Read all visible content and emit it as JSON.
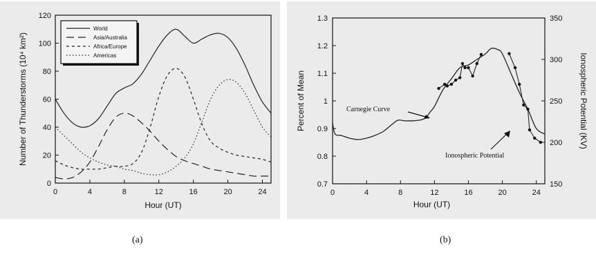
{
  "captions": {
    "a": "(a)",
    "b": "(b)"
  },
  "chart_data": [
    {
      "type": "line",
      "xlabel": "Hour  (UT)",
      "ylabel": "Number of Thunderstorms (10⁴ km²)",
      "xlim": [
        0,
        25
      ],
      "ylim": [
        0,
        120
      ],
      "xticks": [
        0,
        4,
        8,
        12,
        16,
        20,
        24
      ],
      "yticks": [
        0,
        20,
        40,
        60,
        80,
        100,
        120
      ],
      "grid": false,
      "legend_position": "top-left",
      "series": [
        {
          "name": "World",
          "dash": "solid",
          "x": [
            0,
            1,
            2,
            3,
            4,
            5,
            6,
            7,
            8,
            9,
            10,
            11,
            12,
            13,
            14,
            15,
            16,
            17,
            18,
            19,
            20,
            21,
            22,
            23,
            24,
            25
          ],
          "y": [
            60,
            50,
            43,
            40,
            41,
            46,
            55,
            64,
            68,
            71,
            78,
            88,
            98,
            106,
            110,
            105,
            100,
            103,
            106,
            107,
            104,
            96,
            84,
            70,
            58,
            50
          ]
        },
        {
          "name": "Asia/Australia",
          "dash": "long-dash",
          "x": [
            0,
            1,
            2,
            3,
            4,
            5,
            6,
            7,
            8,
            9,
            10,
            11,
            12,
            13,
            14,
            15,
            16,
            17,
            18,
            19,
            20,
            21,
            22,
            23,
            24,
            25
          ],
          "y": [
            4,
            3,
            4,
            8,
            15,
            26,
            38,
            47,
            50,
            48,
            43,
            37,
            30,
            24,
            19,
            16,
            14,
            12,
            10,
            9,
            8,
            7,
            6,
            5,
            5,
            5
          ]
        },
        {
          "name": "Africa/Europe",
          "dash": "short-dash",
          "x": [
            0,
            1,
            2,
            3,
            4,
            5,
            6,
            7,
            8,
            9,
            10,
            11,
            12,
            13,
            14,
            15,
            16,
            17,
            18,
            19,
            20,
            21,
            22,
            23,
            24,
            25
          ],
          "y": [
            16,
            13,
            11,
            10,
            10,
            10,
            11,
            12,
            12,
            14,
            22,
            40,
            62,
            77,
            82,
            76,
            60,
            42,
            30,
            25,
            22,
            20,
            19,
            18,
            17,
            15
          ]
        },
        {
          "name": "Americas",
          "dash": "dotted",
          "x": [
            0,
            1,
            2,
            3,
            4,
            5,
            6,
            7,
            8,
            9,
            10,
            11,
            12,
            13,
            14,
            15,
            16,
            17,
            18,
            19,
            20,
            21,
            22,
            23,
            24,
            25
          ],
          "y": [
            40,
            34,
            28,
            22,
            18,
            15,
            13,
            12,
            10,
            9,
            7,
            6,
            6,
            8,
            12,
            18,
            28,
            44,
            60,
            70,
            74,
            72,
            64,
            52,
            40,
            33
          ]
        }
      ]
    },
    {
      "type": "line",
      "xlabel": "Hour  (UT)",
      "ylabel": "Percent of Mean",
      "ylabel_right": "Ionospheric  Potential  (KV)",
      "xlim": [
        0,
        25
      ],
      "ylim": [
        0.7,
        1.3
      ],
      "ylim_right": [
        150,
        350
      ],
      "xticks": [
        0,
        4,
        8,
        12,
        16,
        20,
        24
      ],
      "yticks": [
        0.7,
        0.8,
        0.9,
        1,
        1.1,
        1.2,
        1.3
      ],
      "yticks_right": [
        150,
        200,
        250,
        300,
        350
      ],
      "grid": false,
      "annotations": [
        "Carnegie   Curve",
        "Ionospheric   Potential"
      ],
      "series": [
        {
          "label": "Carnegie   Curve",
          "dash": "solid",
          "axis": "left",
          "x": [
            0,
            0.3,
            1,
            2,
            3,
            4,
            5,
            6,
            7,
            7.7,
            8.5,
            9.5,
            10.5,
            11,
            11.5,
            12,
            13,
            14,
            15,
            16,
            17,
            18,
            18.7,
            19.5,
            20,
            21,
            22,
            23,
            24,
            25
          ],
          "y": [
            0.92,
            0.88,
            0.875,
            0.865,
            0.86,
            0.865,
            0.875,
            0.89,
            0.915,
            0.93,
            0.928,
            0.928,
            0.932,
            0.94,
            0.96,
            0.98,
            1.04,
            1.08,
            1.12,
            1.13,
            1.15,
            1.17,
            1.19,
            1.185,
            1.17,
            1.1,
            1.03,
            0.97,
            0.9,
            0.88
          ]
        },
        {
          "label": "Ionospheric   Potential",
          "dash": "solid",
          "axis": "right",
          "markers": true,
          "x": [
            12.5,
            13.2,
            13.5,
            14,
            14.5,
            15,
            15.3,
            15.6,
            16,
            16.5,
            17,
            17.5,
            20.8,
            21.5,
            22,
            22.5,
            23,
            23.2,
            23.8,
            24.5
          ],
          "y": [
            265,
            270,
            268,
            270,
            275,
            278,
            295,
            290,
            290,
            280,
            295,
            306,
            307,
            290,
            270,
            245,
            240,
            215,
            205,
            200
          ]
        }
      ]
    }
  ]
}
